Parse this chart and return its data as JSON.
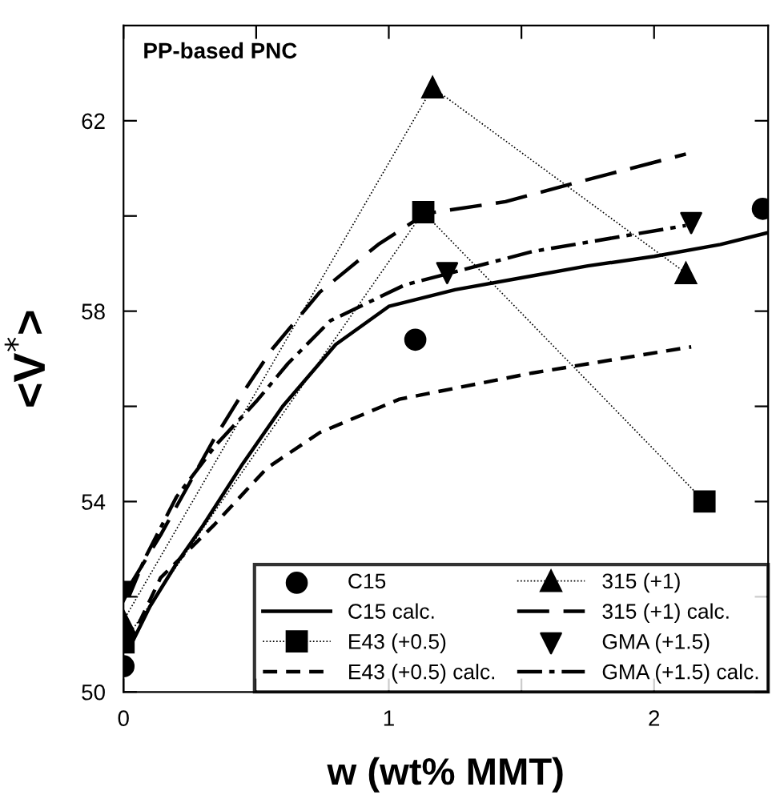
{
  "chart_data": {
    "type": "line",
    "xlabel": "w (wt% MMT)",
    "ylabel": "<V$^{*}$>",
    "annotations": [
      "PP-based PNC"
    ],
    "xlim": [
      0,
      2.43
    ],
    "ylim": [
      50,
      64
    ],
    "xticks": [
      0,
      {
        "value": 0.5,
        "label": null
      },
      1,
      {
        "value": 1.5,
        "label": null
      },
      2
    ],
    "yticks": [
      50,
      {
        "value": 52,
        "label": null
      },
      54,
      {
        "value": 56,
        "label": null
      },
      58,
      {
        "value": 60,
        "label": null
      },
      62
    ],
    "grid": false,
    "legend": "bottom right",
    "series": [
      {
        "name": "C15",
        "type": "scatter",
        "marker": "circle",
        "color": "#000000",
        "x": [
          0,
          1.1,
          2.41
        ],
        "values": [
          50.54,
          57.4,
          60.15
        ]
      },
      {
        "name": "C15 calc.",
        "marker": "none",
        "line_style": "solid",
        "color": "#000000",
        "x": [
          0.02,
          0.1,
          0.2,
          0.3,
          0.45,
          0.6,
          0.8,
          1.0,
          1.25,
          1.5,
          1.75,
          2.0,
          2.25,
          2.43
        ],
        "values": [
          50.9,
          51.8,
          52.7,
          53.5,
          54.8,
          56.0,
          57.3,
          58.1,
          58.45,
          58.7,
          58.95,
          59.15,
          59.4,
          59.65
        ]
      },
      {
        "name": "E43 (+0.5)",
        "marker": "square",
        "line_style": "dotted",
        "color": "#000000",
        "x": [
          0,
          1.13,
          2.19
        ],
        "values": [
          51.04,
          60.08,
          54.0
        ]
      },
      {
        "name": "E43 (+0.5) calc.",
        "marker": "none",
        "line_style": "dashed",
        "color": "#000000",
        "x": [
          0.02,
          0.14,
          0.34,
          0.54,
          0.74,
          1.04,
          1.54,
          2.14
        ],
        "values": [
          51.0,
          52.4,
          53.5,
          54.7,
          55.45,
          56.15,
          56.7,
          57.25
        ]
      },
      {
        "name": "315 (+1)",
        "marker": "triangle",
        "line_style": "dotted",
        "color": "#000000",
        "x": [
          0,
          1.165,
          2.12
        ],
        "values": [
          51.5,
          62.7,
          58.8
        ]
      },
      {
        "name": "315 (+1) calc.",
        "marker": "none",
        "line_style": "longdashed",
        "color": "#000000",
        "x": [
          0.02,
          0.14,
          0.34,
          0.44,
          0.56,
          0.74,
          0.96,
          1.14,
          1.44,
          1.74,
          2.12
        ],
        "values": [
          52.2,
          53.3,
          55.3,
          56.2,
          57.2,
          58.4,
          59.4,
          60.05,
          60.3,
          60.75,
          61.3
        ]
      },
      {
        "name": "GMA (+1.5)",
        "type": "scatter",
        "marker": "triangle_down",
        "color": "#000000",
        "x": [
          0,
          1.22,
          2.14
        ],
        "values": [
          52.1,
          58.8,
          59.85
        ]
      },
      {
        "name": "GMA (+1.5) calc.",
        "marker": "none",
        "line_style": "dashdot",
        "color": "#000000",
        "x": [
          0.02,
          0.08,
          0.2,
          0.35,
          0.5,
          0.62,
          0.78,
          1.06,
          1.54,
          2.12
        ],
        "values": [
          52.0,
          52.8,
          54.1,
          55.2,
          56.1,
          56.9,
          57.8,
          58.55,
          59.25,
          59.8
        ]
      }
    ]
  }
}
